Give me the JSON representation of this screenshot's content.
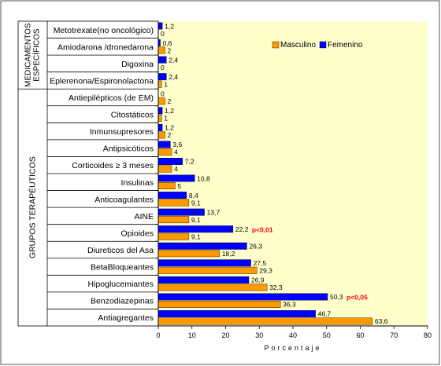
{
  "chart_data": {
    "type": "bar",
    "orientation": "horizontal",
    "categories": [
      "Metotrexate(no oncológico)",
      "Amiodarona /dronedarona",
      "Digoxina",
      "Eplerenona/Espironolactona",
      "Antiepilépticos (de EM)",
      "Citostáticos",
      "Inmunsupresores",
      "Antipsicóticos",
      "Corticoides ≥ 3 meses",
      "Insulinas",
      "Anticoagulantes",
      "AINE",
      "Opioides",
      "Diureticos del Asa",
      "BetaBloqueantes",
      "Hipoglucemiantes",
      "Benzodiazepinas",
      "Antiagregantes"
    ],
    "series": [
      {
        "name": "Femenino",
        "color": "#0000ff",
        "values": [
          1.2,
          0.6,
          2.4,
          2.4,
          0,
          1.2,
          1.2,
          3.6,
          7.2,
          10.8,
          8.4,
          13.7,
          22.2,
          26.3,
          27.5,
          26.9,
          50.3,
          46.7
        ],
        "labels": [
          "1,2",
          "0,6",
          "2,4",
          "2,4",
          "0",
          "1,2",
          "1,2",
          "3,6",
          "7,2",
          "10,8",
          "8,4",
          "13,7",
          "22,2",
          "26,3",
          "27,5",
          "26,9",
          "50,3",
          "46,7"
        ]
      },
      {
        "name": "Masculino",
        "color": "#ff9900",
        "values": [
          0,
          2,
          0,
          1,
          2,
          1,
          2,
          4,
          4,
          5,
          9.1,
          9.1,
          9.1,
          18.2,
          29.3,
          32.3,
          36.3,
          63.6
        ],
        "labels": [
          "0",
          "2",
          "0",
          "1",
          "2",
          "1",
          "2",
          "4",
          "4",
          "5",
          "9,1",
          "9,1",
          "9,1",
          "18,2",
          "29,3",
          "32,3",
          "36,3",
          "63,6"
        ]
      }
    ],
    "xlabel": "Porcentaje",
    "ylabel": "",
    "xlim": [
      0,
      80
    ],
    "xticks": [
      0,
      10,
      20,
      30,
      40,
      50,
      60,
      70,
      80
    ],
    "grid": false,
    "legend_position": "top-right",
    "groups": [
      {
        "label": "MEDICAMENTOS ESPECÍFICOS",
        "first": 0,
        "last": 3
      },
      {
        "label": "GRUPOS TERAPÉUTICOS",
        "first": 4,
        "last": 17
      }
    ],
    "annotations": [
      {
        "text": "p<0,01",
        "category_index": 12,
        "color": "#ff0000"
      },
      {
        "text": "p<0,05",
        "category_index": 16,
        "color": "#ff0000"
      }
    ],
    "plot_background": "#ffffcc"
  }
}
